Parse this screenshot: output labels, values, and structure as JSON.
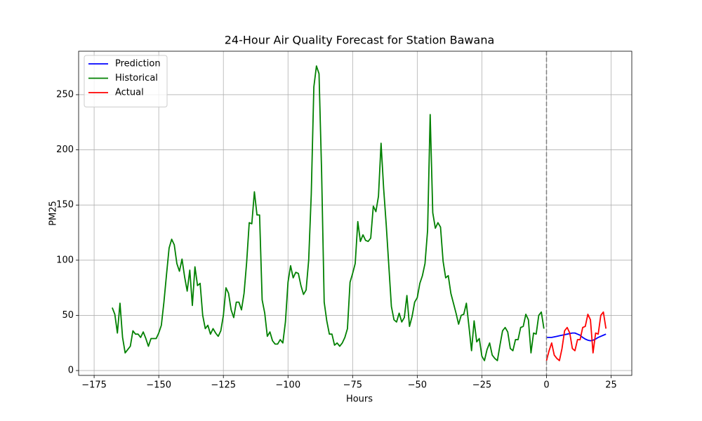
{
  "chart_data": {
    "type": "line",
    "title": "24-Hour Air Quality Forecast for Station Bawana",
    "x_label": "Hours",
    "y_label": "PM25",
    "xlim": [
      -181,
      33
    ],
    "ylim": [
      -4.4,
      289.4
    ],
    "xticks": [
      {
        "value": -175,
        "label": "−175"
      },
      {
        "value": -150,
        "label": "−150"
      },
      {
        "value": -125,
        "label": "−125"
      },
      {
        "value": -100,
        "label": "−100"
      },
      {
        "value": -75,
        "label": "−75"
      },
      {
        "value": -50,
        "label": "−50"
      },
      {
        "value": -25,
        "label": "−25"
      },
      0,
      25
    ],
    "yticks": [
      0,
      50,
      100,
      150,
      200,
      250
    ],
    "grid": true,
    "legend": "upper left",
    "vline": {
      "x": 0,
      "color": "#808080",
      "style": "dashed"
    },
    "series": [
      {
        "name": "Prediction",
        "color": "#0000ff",
        "x": [
          0,
          1,
          2,
          3,
          4,
          5,
          6,
          7,
          8,
          9,
          10,
          11,
          12,
          13,
          14,
          15,
          16,
          17,
          18,
          19,
          20,
          21,
          22,
          23
        ],
        "values": [
          30,
          30,
          30,
          30.5,
          31,
          31.5,
          32,
          32.5,
          33,
          33.5,
          34,
          34,
          33,
          32,
          30,
          28.5,
          27.5,
          27,
          27.5,
          28.5,
          30,
          31,
          32,
          33
        ]
      },
      {
        "name": "Historical",
        "color": "#008000",
        "x": [
          -168,
          -167,
          -166,
          -165,
          -164,
          -163,
          -162,
          -161,
          -160,
          -159,
          -158,
          -157,
          -156,
          -155,
          -154,
          -153,
          -152,
          -151,
          -150,
          -149,
          -148,
          -147,
          -146,
          -145,
          -144,
          -143,
          -142,
          -141,
          -140,
          -139,
          -138,
          -137,
          -136,
          -135,
          -134,
          -133,
          -132,
          -131,
          -130,
          -129,
          -128,
          -127,
          -126,
          -125,
          -124,
          -123,
          -122,
          -121,
          -120,
          -119,
          -118,
          -117,
          -116,
          -115,
          -114,
          -113,
          -112,
          -111,
          -110,
          -109,
          -108,
          -107,
          -106,
          -105,
          -104,
          -103,
          -102,
          -101,
          -100,
          -99,
          -98,
          -97,
          -96,
          -95,
          -94,
          -93,
          -92,
          -91,
          -90,
          -89,
          -88,
          -87,
          -86,
          -85,
          -84,
          -83,
          -82,
          -81,
          -80,
          -79,
          -78,
          -77,
          -76,
          -75,
          -74,
          -73,
          -72,
          -71,
          -70,
          -69,
          -68,
          -67,
          -66,
          -65,
          -64,
          -63,
          -62,
          -61,
          -60,
          -59,
          -58,
          -57,
          -56,
          -55,
          -54,
          -53,
          -52,
          -51,
          -50,
          -49,
          -48,
          -47,
          -46,
          -45,
          -44,
          -43,
          -42,
          -41,
          -40,
          -39,
          -38,
          -37,
          -36,
          -35,
          -34,
          -33,
          -32,
          -31,
          -30,
          -29,
          -28,
          -27,
          -26,
          -25,
          -24,
          -23,
          -22,
          -21,
          -20,
          -19,
          -18,
          -17,
          -16,
          -15,
          -14,
          -13,
          -12,
          -11,
          -10,
          -9,
          -8,
          -7,
          -6,
          -5,
          -4,
          -3,
          -2,
          -1
        ],
        "values": [
          57,
          51,
          34,
          61,
          30,
          16,
          19,
          22,
          36,
          33,
          33,
          30,
          35,
          29,
          22,
          29,
          29,
          29,
          34,
          41,
          62,
          87,
          111,
          119,
          114,
          97,
          90,
          101,
          85,
          72,
          91,
          59,
          94,
          77,
          79,
          50,
          38,
          41,
          33,
          38,
          34,
          31,
          36,
          50,
          75,
          70,
          55,
          48,
          62,
          62,
          55,
          70,
          98,
          134,
          133,
          162,
          141,
          141,
          64,
          52,
          31,
          35,
          27,
          24,
          24,
          28,
          25,
          44,
          80,
          95,
          84,
          89,
          88,
          77,
          69,
          73,
          100,
          160,
          257,
          276,
          269,
          180,
          62,
          45,
          33,
          33,
          23,
          25,
          22,
          25,
          30,
          38,
          80,
          88,
          97,
          135,
          117,
          123,
          118,
          117,
          120,
          149,
          144,
          158,
          206,
          165,
          132,
          95,
          58,
          46,
          44,
          52,
          44,
          48,
          68,
          40,
          49,
          62,
          66,
          79,
          86,
          97,
          127,
          232,
          143,
          129,
          134,
          130,
          99,
          84,
          86,
          70,
          61,
          52,
          42,
          50,
          51,
          61,
          40,
          18,
          45,
          26,
          29,
          13,
          9,
          19,
          25,
          14,
          11,
          9,
          23,
          36,
          39,
          35,
          20,
          18,
          28,
          28,
          39,
          40,
          51,
          46,
          16,
          34,
          33,
          50,
          53,
          38
        ]
      },
      {
        "name": "Actual",
        "color": "#ff0000",
        "x": [
          0,
          1,
          2,
          3,
          4,
          5,
          6,
          7,
          8,
          9,
          10,
          11,
          12,
          13,
          14,
          15,
          16,
          17,
          18,
          19,
          20,
          21,
          22,
          23
        ],
        "values": [
          9,
          18,
          25,
          14,
          11,
          9,
          20,
          36,
          39,
          34,
          20,
          18,
          28,
          28,
          39,
          40,
          51,
          46,
          16,
          34,
          33,
          50,
          53,
          38
        ]
      }
    ]
  }
}
